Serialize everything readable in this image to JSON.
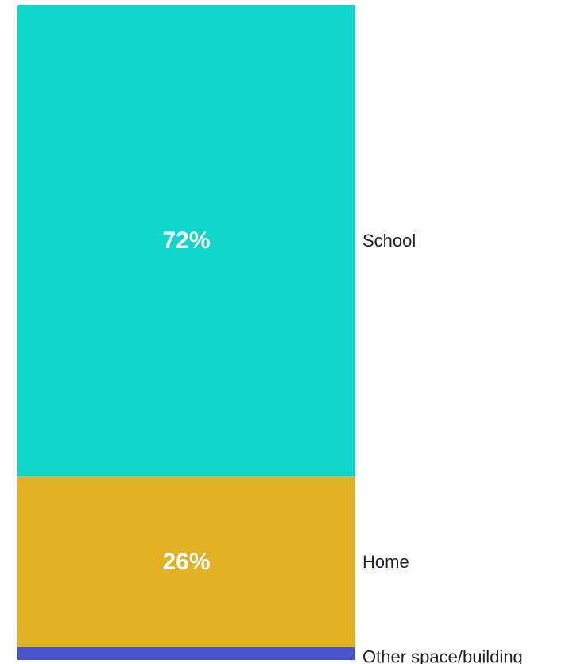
{
  "chart_data": {
    "type": "bar",
    "stacked": true,
    "orientation": "vertical",
    "categories": [
      "School",
      "Home",
      "Other space/building"
    ],
    "values": [
      72,
      26,
      2
    ],
    "value_labels": [
      "72%",
      "26%",
      ""
    ],
    "unit": "%",
    "colors": [
      "#10d5cc",
      "#e2b224",
      "#4a55cc"
    ],
    "ylim": [
      0,
      100
    ],
    "legend": "right of each segment",
    "grid": false
  }
}
